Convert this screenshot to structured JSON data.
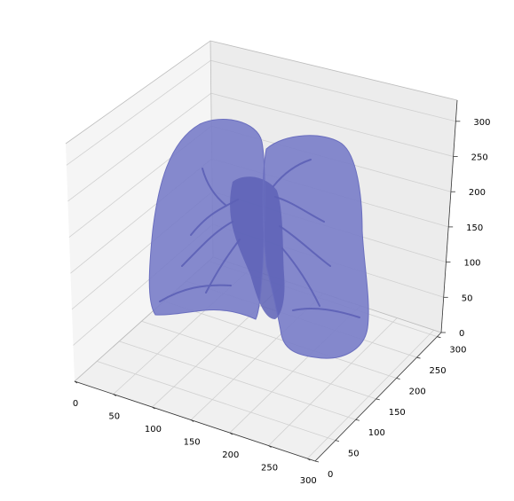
{
  "chart_data": {
    "type": "3d-surface",
    "title": "",
    "xlabel": "",
    "ylabel": "",
    "zlabel": "",
    "x_ticks": [
      0,
      50,
      100,
      150,
      200,
      250,
      300
    ],
    "y_ticks": [
      0,
      50,
      100,
      150,
      200,
      250,
      300
    ],
    "z_ticks": [
      0,
      50,
      100,
      150,
      200,
      250,
      300
    ],
    "xlim": [
      0,
      310
    ],
    "ylim": [
      0,
      310
    ],
    "zlim": [
      0,
      330
    ],
    "grid": true,
    "subject": "lung segmentation surface mesh",
    "colors": {
      "surface": "#7b7fc9",
      "surface_dark": "#5d61b6",
      "pane": "#f2f2f2",
      "grid": "#cfcfcf"
    }
  }
}
